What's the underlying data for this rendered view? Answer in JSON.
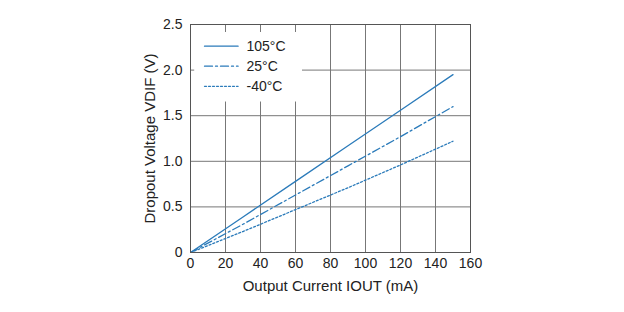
{
  "chart_data": {
    "type": "line",
    "x_label": "Output Current IOUT (mA)",
    "y_label": "Dropout Voltage VDIF (V)",
    "x": [
      0,
      30,
      60,
      90,
      120,
      150
    ],
    "series": [
      {
        "name": "105°C",
        "color": "#2b7bba",
        "line_style": "solid",
        "values": [
          0,
          0.39,
          0.78,
          1.17,
          1.56,
          1.95
        ]
      },
      {
        "name": "25°C",
        "color": "#2b7bba",
        "line_style": "dashdot",
        "values": [
          0,
          0.31,
          0.63,
          0.95,
          1.27,
          1.6
        ]
      },
      {
        "name": "-40°C",
        "color": "#2b7bba",
        "line_style": "dotted",
        "values": [
          0,
          0.23,
          0.47,
          0.71,
          0.96,
          1.22
        ]
      }
    ],
    "xlim": [
      0,
      160
    ],
    "xticks": [
      0,
      20,
      40,
      60,
      80,
      100,
      120,
      140,
      160
    ],
    "ylim": [
      0,
      2.5
    ],
    "yticks": [
      0,
      0.5,
      {
        "value": 1,
        "label": "1.0"
      },
      1.5,
      {
        "value": 2,
        "label": "2.0"
      },
      2.5
    ],
    "grid": true,
    "legend": "top-left"
  }
}
